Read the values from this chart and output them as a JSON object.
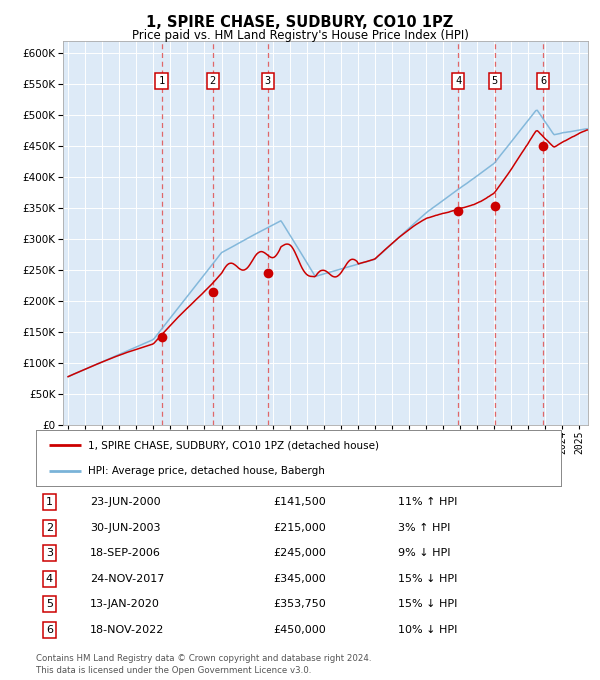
{
  "title": "1, SPIRE CHASE, SUDBURY, CO10 1PZ",
  "subtitle": "Price paid vs. HM Land Registry's House Price Index (HPI)",
  "legend_label_red": "1, SPIRE CHASE, SUDBURY, CO10 1PZ (detached house)",
  "legend_label_blue": "HPI: Average price, detached house, Babergh",
  "footer1": "Contains HM Land Registry data © Crown copyright and database right 2024.",
  "footer2": "This data is licensed under the Open Government Licence v3.0.",
  "transactions": [
    {
      "num": 1,
      "date": "23-JUN-2000",
      "price": 141500,
      "pct": "11%",
      "dir": "↑",
      "year": 2000.48
    },
    {
      "num": 2,
      "date": "30-JUN-2003",
      "price": 215000,
      "pct": "3%",
      "dir": "↑",
      "year": 2003.49
    },
    {
      "num": 3,
      "date": "18-SEP-2006",
      "price": 245000,
      "pct": "9%",
      "dir": "↓",
      "year": 2006.71
    },
    {
      "num": 4,
      "date": "24-NOV-2017",
      "price": 345000,
      "pct": "15%",
      "dir": "↓",
      "year": 2017.9
    },
    {
      "num": 5,
      "date": "13-JAN-2020",
      "price": 353750,
      "pct": "15%",
      "dir": "↓",
      "year": 2020.04
    },
    {
      "num": 6,
      "date": "18-NOV-2022",
      "price": 450000,
      "pct": "10%",
      "dir": "↓",
      "year": 2022.88
    }
  ],
  "hpi_color": "#7ab3d8",
  "price_color": "#cc0000",
  "marker_color": "#cc0000",
  "dashed_color": "#e05050",
  "plot_bg": "#ddeaf7",
  "grid_color": "#ffffff",
  "ylim": [
    0,
    620000
  ],
  "yticks": [
    0,
    50000,
    100000,
    150000,
    200000,
    250000,
    300000,
    350000,
    400000,
    450000,
    500000,
    550000,
    600000
  ],
  "xlim_start": 1994.7,
  "xlim_end": 2025.5
}
